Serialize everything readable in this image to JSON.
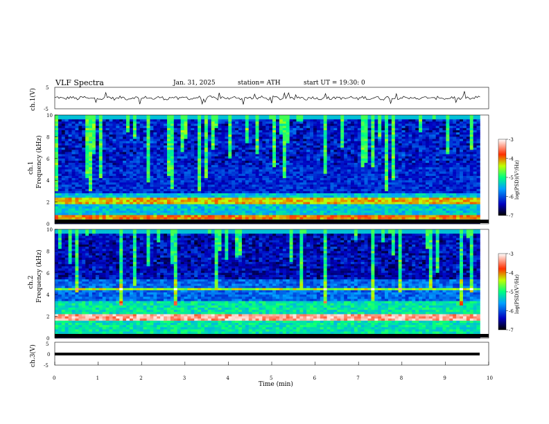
{
  "header": {
    "title": "VLF  Spectra",
    "date": "Jan. 31, 2025",
    "station": "station= ATH",
    "start": "start  UT  =   19:30: 0"
  },
  "chart_data": [
    {
      "type": "line",
      "name": "ch1-time-series",
      "ylabel": "ch.1(V)",
      "ylim": [
        -5,
        5
      ],
      "yticks": [
        "5",
        "-5"
      ],
      "xlim": [
        0,
        10
      ]
    },
    {
      "type": "heatmap",
      "name": "ch1-spectrogram",
      "ylabel": "ch.1\nFrequency (kHz)",
      "ylabel_line1": "ch.1",
      "ylabel_line2": "Frequency (kHz)",
      "ylim": [
        0,
        10
      ],
      "yticks": [
        "0",
        "2",
        "4",
        "6",
        "8",
        "10"
      ],
      "xlim": [
        0,
        10
      ],
      "colorbar": {
        "label": "log(PSD)(V²/Hz)",
        "range": [
          -7,
          -3
        ],
        "ticks": [
          "-3",
          "-4",
          "-5",
          "-6",
          "-7"
        ]
      }
    },
    {
      "type": "heatmap",
      "name": "ch2-spectrogram",
      "ylabel_line1": "ch.2",
      "ylabel_line2": "Frequency (kHz)",
      "ylim": [
        0,
        10
      ],
      "yticks": [
        "0",
        "2",
        "4",
        "6",
        "8",
        "10"
      ],
      "xlim": [
        0,
        10
      ],
      "colorbar": {
        "label": "log(PSD)(V²/Hz)",
        "range": [
          -7,
          -3
        ],
        "ticks": [
          "-3",
          "-4",
          "-5",
          "-6",
          "-7"
        ]
      }
    },
    {
      "type": "line",
      "name": "ch3-time-series",
      "ylabel": "ch.3(V)",
      "ylim": [
        -5,
        5
      ],
      "yticks": [
        "5",
        "0",
        "-5"
      ],
      "xlim": [
        0,
        10
      ],
      "xlabel": "Time  (min)",
      "xticks": [
        "0",
        "1",
        "2",
        "3",
        "4",
        "5",
        "6",
        "7",
        "8",
        "9",
        "10"
      ]
    }
  ],
  "colors": {
    "spectrogram_low": "#000080",
    "spectrogram_mid": "#00c8ff",
    "spectrogram_high": "#ff0000"
  }
}
